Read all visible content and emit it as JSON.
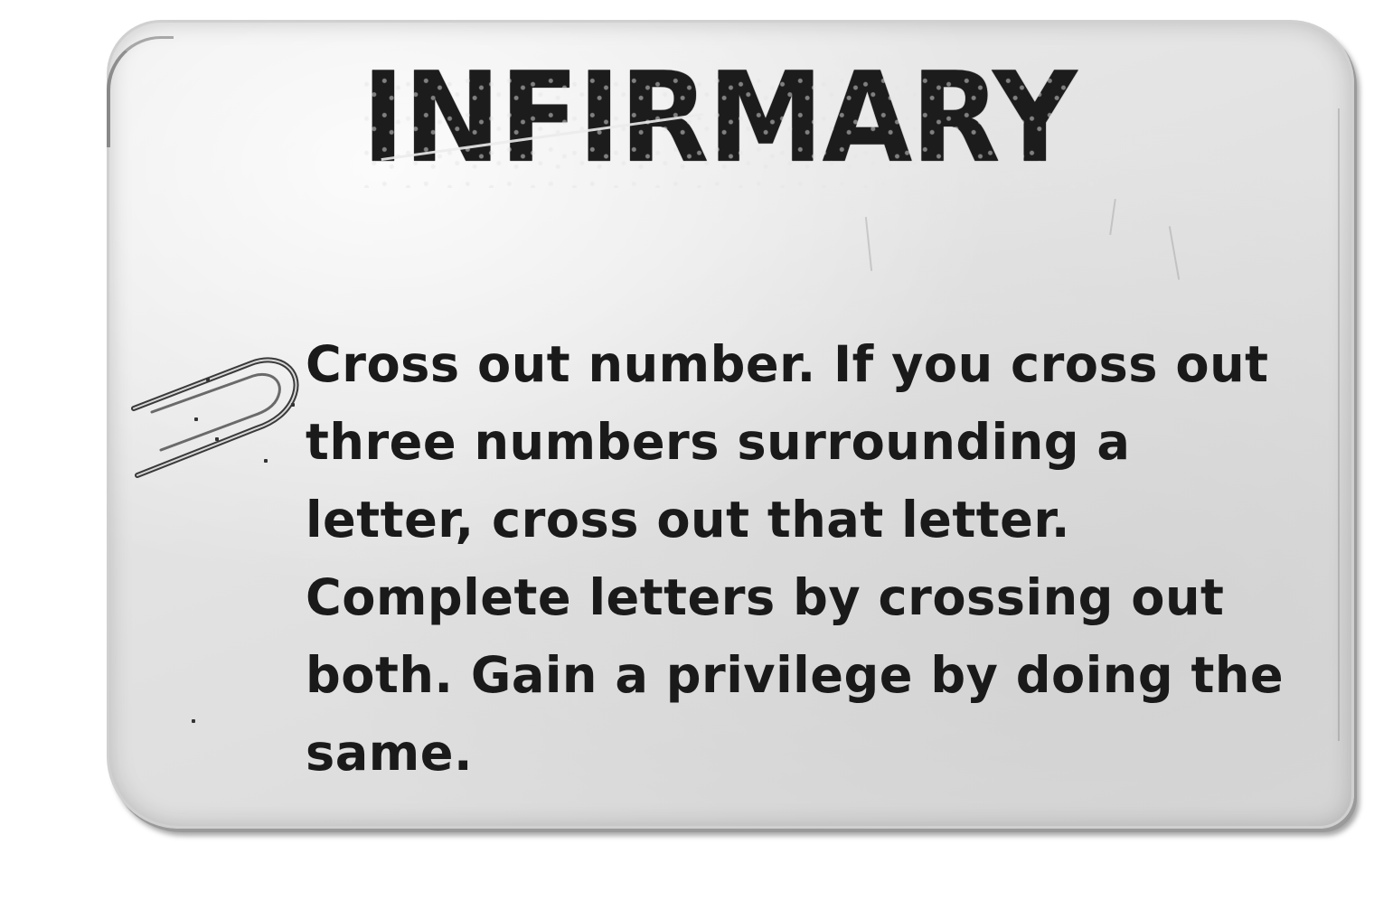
{
  "card": {
    "title": "INFIRMARY",
    "body": "Cross out number. If you cross out three numbers surrounding a letter, cross out that letter. Complete letters by crossing out both. Gain a privilege by doing the same."
  },
  "colors": {
    "paper": "#e2e2e2",
    "ink": "#1a1a1a",
    "page_background": "#ffffff"
  },
  "icons": {
    "paperclip": "paperclip-icon"
  }
}
